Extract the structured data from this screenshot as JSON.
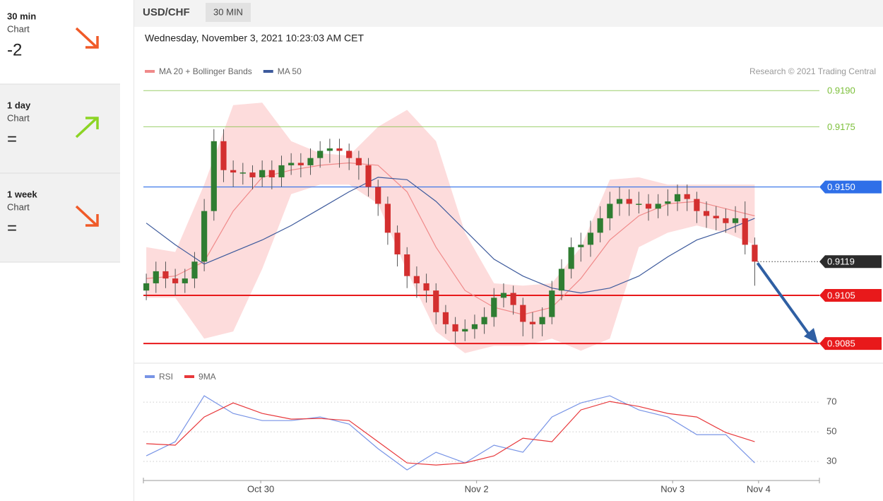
{
  "sidebar": {
    "items": [
      {
        "label": "30 min",
        "sub": "Chart",
        "value": "-2",
        "color": "#f05a28",
        "direction": "down"
      },
      {
        "label": "1 day",
        "sub": "Chart",
        "value": "=",
        "color": "#8cd424",
        "direction": "up"
      },
      {
        "label": "1 week",
        "sub": "Chart",
        "value": "=",
        "color": "#f05a28",
        "direction": "down"
      }
    ]
  },
  "header": {
    "symbol": "USD/CHF",
    "timeframe": "30 MIN",
    "datetime": "Wednesday, November 3, 2021 10:23:03 AM CET",
    "credit": "Research © 2021 Trading Central"
  },
  "chart_data": [
    {
      "type": "candlestick",
      "up_color": "#2f7d32",
      "down_color": "#d32f2f",
      "open": [
        0.9107,
        0.911,
        0.9115,
        0.9112,
        0.911,
        0.9112,
        0.9119,
        0.914,
        0.9169,
        0.9157,
        0.9156,
        0.9156,
        0.9154,
        0.9157,
        0.9154,
        0.9159,
        0.916,
        0.9159,
        0.9162,
        0.9165,
        0.9166,
        0.9165,
        0.9162,
        0.9159,
        0.915,
        0.9143,
        0.9131,
        0.9122,
        0.9113,
        0.911,
        0.9107,
        0.9098,
        0.9093,
        0.909,
        0.9091,
        0.9093,
        0.9096,
        0.9104,
        0.9106,
        0.9101,
        0.9094,
        0.9093,
        0.9096,
        0.9107,
        0.9116,
        0.9125,
        0.9126,
        0.9131,
        0.9137,
        0.9143,
        0.9145,
        0.9143,
        0.9143,
        0.9141,
        0.9143,
        0.9144,
        0.9147,
        0.9145,
        0.914,
        0.9138,
        0.9137,
        0.9135,
        0.9137,
        0.9126
      ],
      "high": [
        0.9114,
        0.9119,
        0.9119,
        0.9116,
        0.9116,
        0.9123,
        0.9145,
        0.9174,
        0.9174,
        0.9161,
        0.916,
        0.9159,
        0.9161,
        0.9161,
        0.9163,
        0.9164,
        0.9164,
        0.9166,
        0.9169,
        0.917,
        0.917,
        0.9168,
        0.9165,
        0.9162,
        0.9153,
        0.9146,
        0.9134,
        0.9125,
        0.9117,
        0.9114,
        0.911,
        0.9101,
        0.9096,
        0.9095,
        0.9097,
        0.91,
        0.9108,
        0.911,
        0.9109,
        0.9104,
        0.9098,
        0.91,
        0.9111,
        0.912,
        0.9129,
        0.9131,
        0.9136,
        0.9142,
        0.9148,
        0.915,
        0.9149,
        0.9148,
        0.9147,
        0.9147,
        0.9149,
        0.9151,
        0.9151,
        0.9148,
        0.9144,
        0.9142,
        0.9141,
        0.9142,
        0.9144,
        0.9129
      ],
      "low": [
        0.9103,
        0.9106,
        0.9108,
        0.9105,
        0.9106,
        0.9108,
        0.9115,
        0.9136,
        0.9152,
        0.915,
        0.9151,
        0.9149,
        0.915,
        0.9149,
        0.915,
        0.9155,
        0.9154,
        0.9155,
        0.9158,
        0.916,
        0.9158,
        0.9157,
        0.9153,
        0.9146,
        0.9138,
        0.9126,
        0.9117,
        0.9108,
        0.9104,
        0.9102,
        0.9093,
        0.9089,
        0.9085,
        0.9086,
        0.9087,
        0.9089,
        0.9092,
        0.91,
        0.9097,
        0.9088,
        0.9087,
        0.9088,
        0.9093,
        0.9103,
        0.9112,
        0.9119,
        0.9121,
        0.9127,
        0.9132,
        0.9138,
        0.9138,
        0.9139,
        0.9136,
        0.9137,
        0.9138,
        0.914,
        0.914,
        0.9135,
        0.9133,
        0.9132,
        0.9131,
        0.9131,
        0.9122,
        0.9109
      ],
      "close": [
        0.911,
        0.9115,
        0.9112,
        0.911,
        0.9112,
        0.9119,
        0.914,
        0.9169,
        0.9157,
        0.9156,
        0.9156,
        0.9154,
        0.9157,
        0.9154,
        0.9159,
        0.916,
        0.9159,
        0.9162,
        0.9165,
        0.9166,
        0.9165,
        0.9162,
        0.9159,
        0.915,
        0.9143,
        0.9131,
        0.9122,
        0.9113,
        0.911,
        0.9107,
        0.9098,
        0.9093,
        0.909,
        0.9091,
        0.9093,
        0.9096,
        0.9104,
        0.9106,
        0.9101,
        0.9094,
        0.9093,
        0.9096,
        0.9107,
        0.9116,
        0.9125,
        0.9126,
        0.9131,
        0.9137,
        0.9143,
        0.9145,
        0.9143,
        0.9143,
        0.9141,
        0.9143,
        0.9144,
        0.9147,
        0.9145,
        0.914,
        0.9138,
        0.9137,
        0.9135,
        0.9137,
        0.9126,
        0.9119
      ],
      "series": [
        {
          "name": "MA 20 + Bollinger Bands",
          "color": "#f08a8a",
          "band_color": "#fddcdc",
          "x": [
            0,
            3,
            6,
            9,
            12,
            15,
            18,
            21,
            24,
            27,
            30,
            33,
            36,
            39,
            42,
            45,
            48,
            51,
            54,
            57,
            60,
            63
          ],
          "values": [
            0.9112,
            0.9113,
            0.9119,
            0.914,
            0.9154,
            0.9157,
            0.9159,
            0.916,
            0.9159,
            0.9148,
            0.9125,
            0.9107,
            0.91,
            0.9097,
            0.91,
            0.9112,
            0.9128,
            0.9138,
            0.9143,
            0.9144,
            0.9141,
            0.9138
          ],
          "upper": [
            0.9125,
            0.9123,
            0.9151,
            0.9184,
            0.9185,
            0.9169,
            0.9164,
            0.9163,
            0.9175,
            0.9182,
            0.9169,
            0.9131,
            0.911,
            0.9109,
            0.911,
            0.9125,
            0.9153,
            0.9154,
            0.9151,
            0.9151,
            0.9151,
            0.9151
          ],
          "lower": [
            0.9104,
            0.9104,
            0.9087,
            0.909,
            0.9116,
            0.9147,
            0.9151,
            0.9151,
            0.9143,
            0.9115,
            0.909,
            0.9081,
            0.9084,
            0.9084,
            0.9087,
            0.9082,
            0.9087,
            0.9125,
            0.9131,
            0.9134,
            0.9131,
            0.9126
          ]
        },
        {
          "name": "MA 50",
          "color": "#3d5a9c",
          "x": [
            0,
            3,
            6,
            9,
            12,
            15,
            18,
            21,
            24,
            27,
            30,
            33,
            36,
            39,
            42,
            45,
            48,
            51,
            54,
            57,
            60,
            63
          ],
          "values": [
            0.9135,
            0.9126,
            0.9118,
            0.9123,
            0.9128,
            0.9134,
            0.9141,
            0.9148,
            0.9154,
            0.9153,
            0.9144,
            0.9132,
            0.912,
            0.9113,
            0.9108,
            0.9106,
            0.9108,
            0.9113,
            0.9121,
            0.9128,
            0.9132,
            0.9137
          ]
        }
      ],
      "xlim": [
        -0.3,
        69.7
      ],
      "ylim": [
        0.9078,
        0.9193
      ],
      "yticks": [
        {
          "value": 0.919,
          "label": "0.9190"
        },
        0.9175,
        {
          "value": 0.915,
          "label": "0.9150"
        },
        0.9105,
        0.9085
      ],
      "ytick_colors": [
        "#7cbf3a",
        "#7cbf3a",
        "#2f6fe8",
        "#e8191b",
        "#e8191b"
      ],
      "ytick_boxed": [
        false,
        false,
        true,
        true,
        true
      ],
      "last_price": 0.9119,
      "last_price_color": "#2b2b2b"
    },
    {
      "type": "line",
      "series": [
        {
          "name": "RSI",
          "color": "#7894e6",
          "x": [
            0,
            3,
            6,
            9,
            12,
            15,
            18,
            21,
            24,
            27,
            30,
            33,
            36,
            39,
            42,
            45,
            48,
            51,
            54,
            57,
            60,
            63
          ],
          "values": [
            33.8,
            43.3,
            74.3,
            62.4,
            57.6,
            57.6,
            60,
            55.2,
            38.6,
            24.3,
            36.2,
            29,
            41,
            36.2,
            60,
            69.5,
            74.3,
            64.8,
            60,
            48.1,
            48.1,
            29
          ]
        },
        {
          "name": "9MA",
          "color": "#e8383b",
          "x": [
            0,
            3,
            6,
            9,
            12,
            15,
            18,
            21,
            24,
            27,
            30,
            33,
            36,
            39,
            42,
            45,
            48,
            51,
            54,
            57,
            60,
            63
          ],
          "values": [
            42,
            41,
            60,
            69.5,
            62.4,
            58.6,
            59,
            57.6,
            43.3,
            29,
            27.6,
            29,
            33.8,
            45.7,
            43.3,
            64.8,
            70.5,
            67.1,
            62.4,
            60,
            49.5,
            43.3
          ]
        }
      ],
      "xlim": [
        -0.3,
        69.7
      ],
      "xticks": [
        {
          "value": 11.85,
          "label": "Oct 30"
        },
        {
          "value": 34.2,
          "label": "Nov 2"
        },
        {
          "value": 54.5,
          "label": "Nov 3"
        },
        {
          "value": 63.4,
          "label": "Nov 4"
        }
      ],
      "ylim": [
        20,
        82
      ],
      "yticks": [
        70,
        50,
        30
      ],
      "grid": true
    }
  ]
}
